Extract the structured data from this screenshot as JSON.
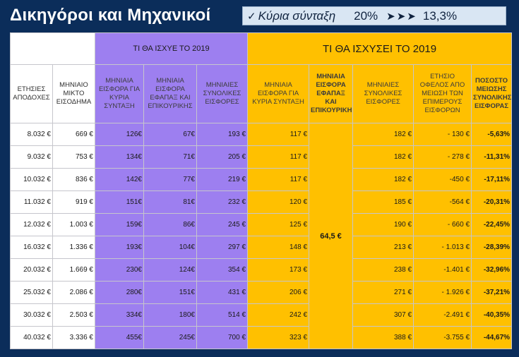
{
  "title": "Δικηγόροι και Μηχανικοί",
  "note": {
    "check": "✓",
    "label": "Κύρια σύνταξη",
    "from": "20%",
    "arrows": "➤➤➤",
    "to": "13,3%"
  },
  "groups": {
    "old": "ΤΙ ΘΑ ΙΣΧΥΕ ΤΟ 2019",
    "new": "ΤΙ ΘΑ ΙΣΧΥΣΕΙ ΤΟ 2019"
  },
  "headers": {
    "annual": "ΕΤΗΣΙΕΣ ΑΠΟΔΟΧΕΣ",
    "monthly": "ΜΗΝΙΑΙΟ ΜΙΚΤΟ ΕΙΣΟΔΗΜΑ",
    "old_main": "ΜΗΝΙΑΙΑ ΕΙΣΦΟΡΑ ΓΙΑ ΚΥΡΙΑ ΣΥΝΤΑΞΗ",
    "old_lump": "ΜΗΝΙΑΙΑ ΕΙΣΦΟΡΑ ΕΦΑΠΑΞ ΚΑΙ ΕΠΙΚΟΥΡΙΚΗΣ",
    "old_total": "ΜΗΝΙΑΙΕΣ ΣΥΝΟΛΙΚΕΣ ΕΙΣΦΟΡΕΣ",
    "new_main": "ΜΗΝΙΑΙΑ ΕΙΣΦΟΡΑ ΓΙΑ ΚΥΡΙΑ ΣΥΝΤΑΞΗ",
    "new_lump": "ΜΗΝΙΑΙΑ ΕΙΣΦΟΡΑ ΕΦΑΠΑΞ ΚΑΙ ΕΠΙΚΟΥΡΙΚΗ",
    "new_total": "ΜΗΝΙΑΙΕΣ ΣΥΝΟΛΙΚΕΣ ΕΙΣΦΟΡΕΣ",
    "benefit": "ΕΤΗΣΙΟ ΟΦΕΛΟΣ ΑΠΟ ΜΕΙΩΣΗ ΤΩΝ ΕΠΙΜΕΡΟΥΣ ΕΙΣΦΟΡΩΝ",
    "pct": "ΠΟΣΟΣΤΟ ΜΕΙΩΣΗΣ ΣΥΝΟΛΙΚΗΣ ΕΙΣΦΟΡΑΣ"
  },
  "new_lump_value": "64,5 €",
  "rows": [
    {
      "annual": "8.032 €",
      "monthly": "669 €",
      "old_main": "126€",
      "old_lump": "67€",
      "old_total": "193 €",
      "new_main": "117 €",
      "new_total": "182 €",
      "benefit": "- 130 €",
      "pct": "-5,63%"
    },
    {
      "annual": "9.032 €",
      "monthly": "753 €",
      "old_main": "134€",
      "old_lump": "71€",
      "old_total": "205 €",
      "new_main": "117 €",
      "new_total": "182 €",
      "benefit": "- 278 €",
      "pct": "-11,31%"
    },
    {
      "annual": "10.032 €",
      "monthly": "836 €",
      "old_main": "142€",
      "old_lump": "77€",
      "old_total": "219 €",
      "new_main": "117 €",
      "new_total": "182 €",
      "benefit": "-450 €",
      "pct": "-17,11%"
    },
    {
      "annual": "11.032 €",
      "monthly": "919 €",
      "old_main": "151€",
      "old_lump": "81€",
      "old_total": "232 €",
      "new_main": "120 €",
      "new_total": "185 €",
      "benefit": "-564 €",
      "pct": "-20,31%"
    },
    {
      "annual": "12.032 €",
      "monthly": "1.003 €",
      "old_main": "159€",
      "old_lump": "86€",
      "old_total": "245 €",
      "new_main": "125 €",
      "new_total": "190 €",
      "benefit": "- 660 €",
      "pct": "-22,45%"
    },
    {
      "annual": "16.032 €",
      "monthly": "1.336 €",
      "old_main": "193€",
      "old_lump": "104€",
      "old_total": "297 €",
      "new_main": "148 €",
      "new_total": "213 €",
      "benefit": "- 1.013 €",
      "pct": "-28,39%"
    },
    {
      "annual": "20.032 €",
      "monthly": "1.669 €",
      "old_main": "230€",
      "old_lump": "124€",
      "old_total": "354 €",
      "new_main": "173 €",
      "new_total": "238 €",
      "benefit": "-1.401 €",
      "pct": "-32,96%"
    },
    {
      "annual": "25.032 €",
      "monthly": "2.086 €",
      "old_main": "280€",
      "old_lump": "151€",
      "old_total": "431 €",
      "new_main": "206 €",
      "new_total": "271 €",
      "benefit": "- 1.926 €",
      "pct": "-37,21%"
    },
    {
      "annual": "30.032 €",
      "monthly": "2.503 €",
      "old_main": "334€",
      "old_lump": "180€",
      "old_total": "514 €",
      "new_main": "242 €",
      "new_total": "307 €",
      "benefit": "-2.491 €",
      "pct": "-40,35%"
    },
    {
      "annual": "40.032 €",
      "monthly": "3.336 €",
      "old_main": "455€",
      "old_lump": "245€",
      "old_total": "700 €",
      "new_main": "323 €",
      "new_total": "388 €",
      "benefit": "-3.755 €",
      "pct": "-44,67%"
    }
  ]
}
